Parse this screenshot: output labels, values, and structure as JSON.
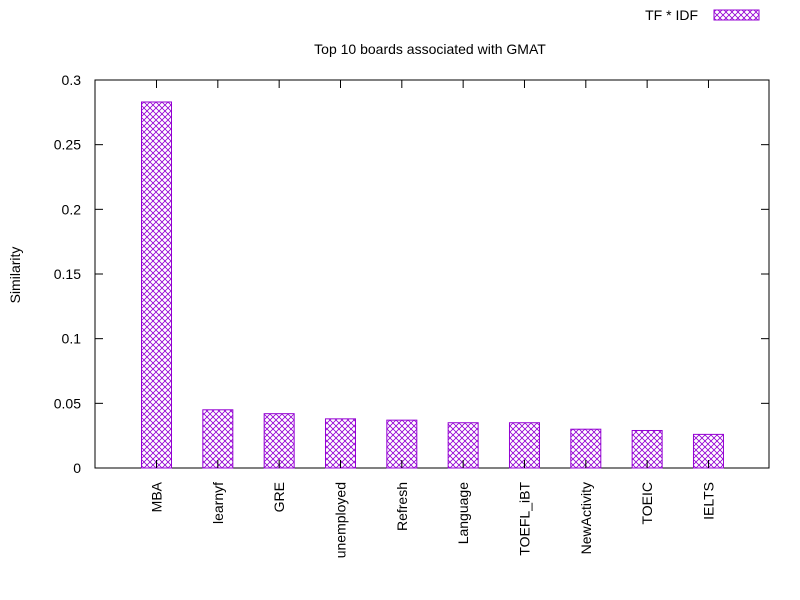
{
  "chart_data": {
    "type": "bar",
    "title": "Top 10 boards associated with GMAT",
    "xlabel": "",
    "ylabel": "Similarity",
    "ylim": [
      0,
      0.3
    ],
    "yticks": [
      "0",
      "0.05",
      "0.1",
      "0.15",
      "0.2",
      "0.25",
      "0.3"
    ],
    "categories": [
      "MBA",
      "learnyf",
      "GRE",
      "unemployed",
      "Refresh",
      "Language",
      "TOEFL_iBT",
      "NewActivity",
      "TOEIC",
      "IELTS"
    ],
    "series": [
      {
        "name": "TF * IDF",
        "values": [
          0.283,
          0.045,
          0.042,
          0.038,
          0.037,
          0.035,
          0.035,
          0.03,
          0.029,
          0.026
        ]
      }
    ],
    "legend_position": "top-right",
    "grid": false,
    "colors": {
      "series": "#9400d3",
      "axis": "#000000"
    }
  }
}
